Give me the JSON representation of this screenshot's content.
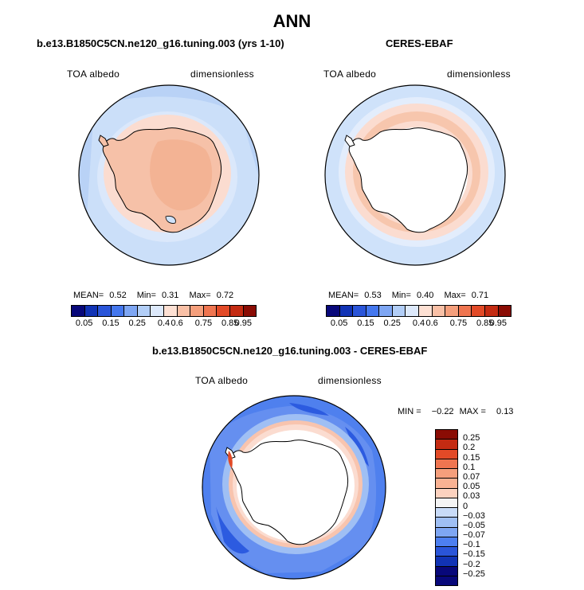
{
  "main_title": "ANN",
  "panels": [
    {
      "title": "b.e13.B1850C5CN.ne120_g16.tuning.003 (yrs 1-10)",
      "variable": "TOA albedo",
      "units": "dimensionless",
      "stats": {
        "mean_label": "MEAN=",
        "mean": "0.52",
        "min_label": "Min=",
        "min": "0.31",
        "max_label": "Max=",
        "max": "0.72"
      }
    },
    {
      "title": "CERES-EBAF",
      "variable": "TOA albedo",
      "units": "dimensionless",
      "stats": {
        "mean_label": "MEAN=",
        "mean": "0.53",
        "min_label": "Min=",
        "min": "0.40",
        "max_label": "Max=",
        "max": "0.71"
      }
    },
    {
      "title": "b.e13.B1850C5CN.ne120_g16.tuning.003 - CERES-EBAF",
      "variable": "TOA albedo",
      "units": "dimensionless",
      "stats": {
        "min_label": "MIN =",
        "min": "−0.22",
        "max_label": "MAX =",
        "max": "0.13"
      }
    }
  ],
  "colorbar_abs": {
    "labels": [
      "0.05",
      "0.15",
      "0.25",
      "0.4",
      "0.6",
      "0.75",
      "0.85",
      "0.95"
    ],
    "colors": [
      "#08087a",
      "#1133b5",
      "#2a55d9",
      "#4477ee",
      "#7ea6f3",
      "#b2cef7",
      "#dde9fb",
      "#fde0d3",
      "#f9c0a6",
      "#f59f7c",
      "#ef7550",
      "#e24a27",
      "#c42b12",
      "#8a0c04"
    ]
  },
  "colorbar_diff": {
    "labels": [
      "0.25",
      "0.2",
      "0.15",
      "0.1",
      "0.07",
      "0.05",
      "0.03",
      "0",
      "−0.03",
      "−0.05",
      "−0.07",
      "−0.1",
      "−0.15",
      "−0.2",
      "−0.25"
    ],
    "colors": [
      "#8a0c04",
      "#c42b12",
      "#e24a27",
      "#ef7550",
      "#f59f7c",
      "#f9b293",
      "#fcd2bf",
      "#f4f4f4",
      "#c8dbf8",
      "#9fbff4",
      "#7ea6f3",
      "#4d7ff0",
      "#2a55d9",
      "#1133b5",
      "#08087a"
    ]
  },
  "colors": {
    "ocean_light": "#cfe2fa",
    "ocean_mid": "#b9d2f6",
    "ice_peach": "#f7c6ad",
    "ice_salmon": "#f3b394",
    "diff_blue": "#4f80ee",
    "diff_deep": "#2c5be0",
    "diff_red": "#f4a88b"
  }
}
